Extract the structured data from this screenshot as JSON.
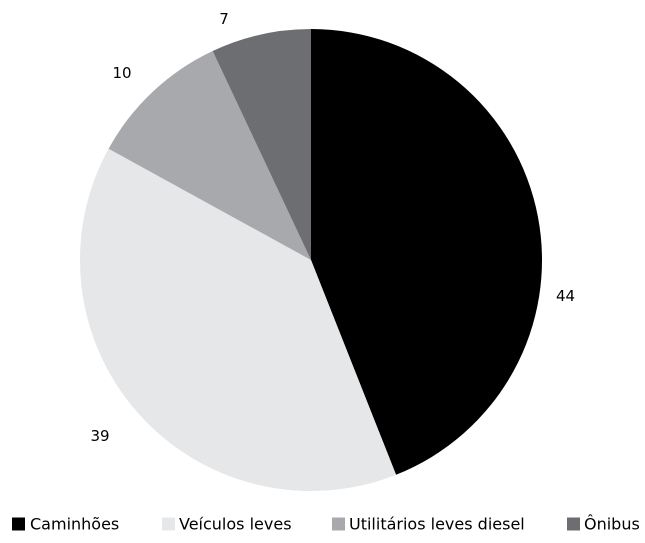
{
  "chart_data": {
    "type": "pie",
    "title": "",
    "categories": [
      "Caminhões",
      "Veículos leves",
      "Utilitários leves diesel",
      "Ônibus"
    ],
    "values": [
      44,
      39,
      10,
      7
    ],
    "colors": [
      "#000000",
      "#e6e7e8",
      "#a7a9ac",
      "#6d6e71"
    ],
    "start_angle_deg": 0,
    "direction": "clockwise",
    "legend_position": "bottom",
    "data_labels": [
      "44",
      "39",
      "10",
      "7"
    ]
  }
}
